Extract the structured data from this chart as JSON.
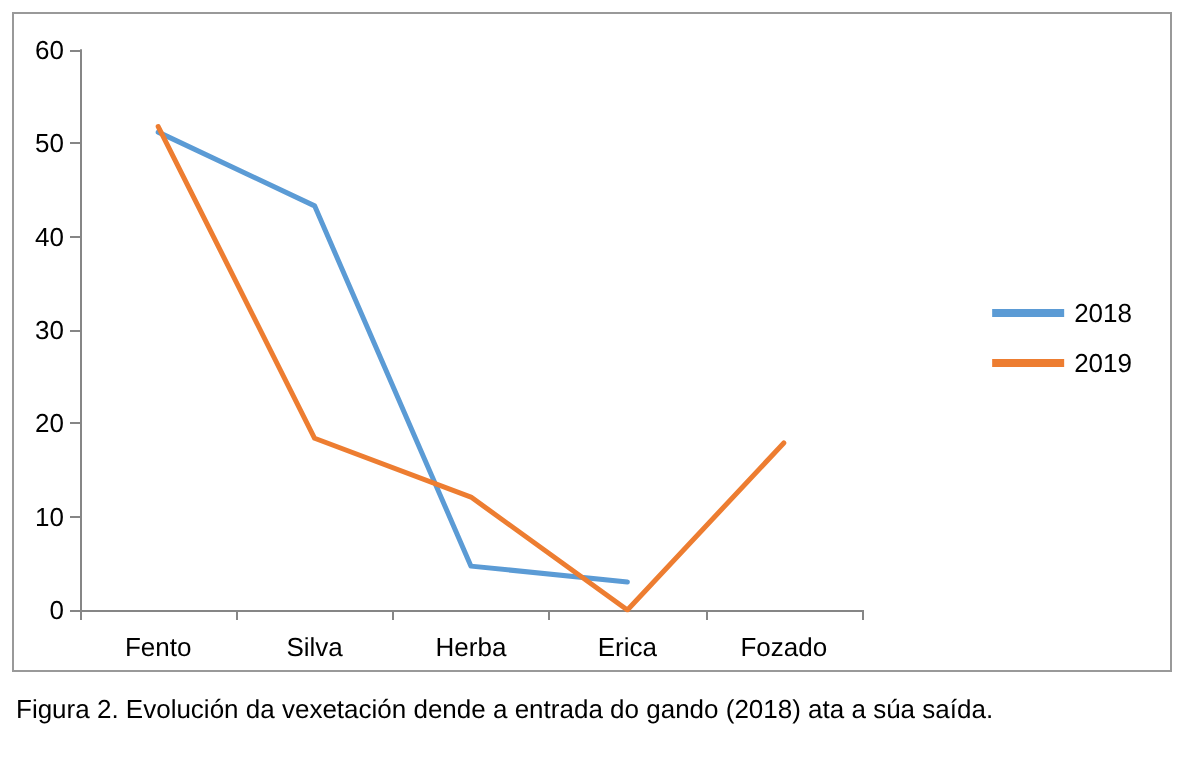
{
  "chart_data": {
    "type": "line",
    "categories": [
      "Fento",
      "Silva",
      "Herba",
      "Erica",
      "Fozado"
    ],
    "series": [
      {
        "name": "2018",
        "color": "#5b9bd5",
        "values": [
          51.2,
          43.3,
          4.7,
          3.0,
          null
        ]
      },
      {
        "name": "2019",
        "color": "#ed7d31",
        "values": [
          51.8,
          18.4,
          12.1,
          0,
          17.9
        ]
      }
    ],
    "ylim": [
      0,
      60
    ],
    "yticks": [
      0,
      10,
      20,
      30,
      40,
      50,
      60
    ],
    "grid": false,
    "legend": "right",
    "marker": "none",
    "line_style": "solid",
    "annotations": [
      "Figura 2. Evolución da vexetación dende a entrada do gando (2018) ata a súa saída."
    ]
  }
}
